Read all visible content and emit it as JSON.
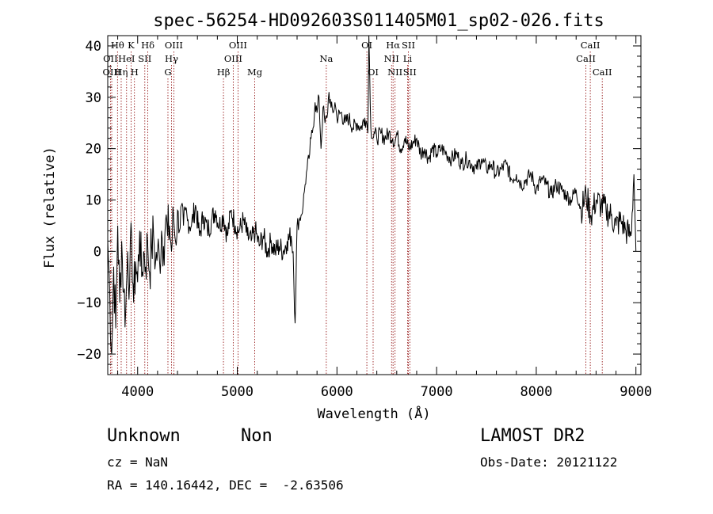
{
  "chart_data": {
    "type": "line",
    "title": "spec-56254-HD092603S011405M01_sp02-026.fits",
    "xlabel": "Wavelength (Å)",
    "ylabel": "Flux (relative)",
    "xlim": [
      3700,
      9050
    ],
    "ylim": [
      -24,
      42
    ],
    "xticks": [
      4000,
      5000,
      6000,
      7000,
      8000,
      9000
    ],
    "yticks": [
      -20,
      -10,
      0,
      10,
      20,
      30,
      40
    ],
    "grid": false,
    "line_color": "#000000",
    "marker_color": "#8b0000",
    "series": [
      {
        "x": [
          3700,
          3720,
          3740,
          3760,
          3780,
          3800,
          3820,
          3840,
          3860,
          3880,
          3900,
          3920,
          3940,
          3960,
          3980,
          4000,
          4020,
          4040,
          4060,
          4080,
          4100,
          4120,
          4140,
          4160,
          4180,
          4200,
          4220,
          4240,
          4260,
          4280,
          4300,
          4320,
          4340,
          4360,
          4380,
          4400,
          4420,
          4440,
          4460,
          4480,
          4500,
          4540,
          4580,
          4620,
          4660,
          4700,
          4740,
          4780,
          4820,
          4860,
          4900,
          4940,
          4980,
          5020,
          5060,
          5100,
          5140,
          5180,
          5220,
          5260,
          5300,
          5340,
          5380,
          5420,
          5460,
          5500,
          5540,
          5560,
          5580,
          5600,
          5620,
          5640,
          5660,
          5680,
          5700,
          5720,
          5740,
          5760,
          5780,
          5800,
          5820,
          5840,
          5860,
          5880,
          5900,
          5920,
          5940,
          5960,
          5980,
          6000,
          6040,
          6080,
          6120,
          6160,
          6200,
          6240,
          6280,
          6300,
          6310,
          6320,
          6340,
          6360,
          6380,
          6400,
          6440,
          6480,
          6520,
          6560,
          6580,
          6600,
          6640,
          6680,
          6720,
          6760,
          6800,
          6840,
          6880,
          6920,
          6960,
          7000,
          7050,
          7100,
          7150,
          7200,
          7250,
          7300,
          7350,
          7400,
          7450,
          7500,
          7550,
          7600,
          7650,
          7700,
          7750,
          7800,
          7850,
          7900,
          7950,
          8000,
          8050,
          8100,
          8150,
          8200,
          8250,
          8300,
          8350,
          8400,
          8450,
          8500,
          8550,
          8600,
          8650,
          8700,
          8750,
          8800,
          8850,
          8900,
          8950,
          8980,
          9000
        ],
        "y": [
          2,
          -8,
          -20,
          -3,
          -15,
          5,
          -10,
          2,
          -8,
          -12,
          0,
          -6,
          3,
          -10,
          -2,
          -6,
          4,
          -5,
          0,
          -3,
          2,
          -4,
          1,
          3,
          -2,
          0,
          -2,
          4,
          1,
          6,
          3,
          5,
          0,
          7,
          2,
          8,
          4,
          9,
          5,
          8,
          6,
          5,
          9,
          3,
          7,
          4,
          6,
          8,
          5,
          7,
          3,
          8,
          5,
          4,
          6,
          3,
          2,
          4,
          1,
          3,
          0,
          2,
          0,
          1,
          0,
          2,
          3,
          0,
          -14,
          5,
          6,
          7,
          9,
          13,
          16,
          18,
          22,
          24,
          29,
          27,
          30,
          20,
          28,
          25,
          26,
          31,
          28,
          27,
          29,
          26,
          27,
          25,
          26,
          24,
          25,
          24,
          26,
          25,
          23,
          43,
          24,
          22,
          23,
          22,
          23,
          22,
          23,
          22,
          21,
          23,
          20,
          22,
          20,
          21,
          22,
          19,
          20,
          18,
          20,
          19,
          20,
          19,
          18,
          19,
          17,
          18,
          17,
          16,
          18,
          16,
          17,
          15,
          16,
          17,
          14,
          15,
          13,
          14,
          15,
          12,
          14,
          13,
          11,
          13,
          12,
          11,
          10,
          12,
          8,
          11,
          7,
          10,
          9,
          8,
          7,
          5,
          6,
          4,
          3,
          15,
          0
        ]
      }
    ],
    "lines": [
      {
        "label": "OII",
        "x": 3727,
        "row": 2
      },
      {
        "label": "OIII",
        "x": 3740,
        "row": 3
      },
      {
        "label": "Hθ",
        "x": 3798,
        "row": 1
      },
      {
        "label": "Hη",
        "x": 3835,
        "row": 3
      },
      {
        "label": "HeI",
        "x": 3889,
        "row": 2
      },
      {
        "label": "K",
        "x": 3934,
        "row": 1
      },
      {
        "label": "H",
        "x": 3968,
        "row": 3
      },
      {
        "label": "SII",
        "x": 4072,
        "row": 2
      },
      {
        "label": "Hδ",
        "x": 4102,
        "row": 1
      },
      {
        "label": "G",
        "x": 4304,
        "row": 3
      },
      {
        "label": "Hγ",
        "x": 4340,
        "row": 2
      },
      {
        "label": "OIII",
        "x": 4363,
        "row": 1
      },
      {
        "label": "Hβ",
        "x": 4861,
        "row": 3
      },
      {
        "label": "OIII",
        "x": 4959,
        "row": 2
      },
      {
        "label": "OIII",
        "x": 5007,
        "row": 1
      },
      {
        "label": "Mg",
        "x": 5175,
        "row": 3
      },
      {
        "label": "Na",
        "x": 5893,
        "row": 2
      },
      {
        "label": "OI",
        "x": 6300,
        "row": 1
      },
      {
        "label": "OI",
        "x": 6363,
        "row": 3
      },
      {
        "label": "NII",
        "x": 6548,
        "row": 2
      },
      {
        "label": "Hα",
        "x": 6563,
        "row": 1
      },
      {
        "label": "NII",
        "x": 6583,
        "row": 3
      },
      {
        "label": "Li",
        "x": 6708,
        "row": 2
      },
      {
        "label": "SII",
        "x": 6717,
        "row": 1
      },
      {
        "label": "SII",
        "x": 6731,
        "row": 3
      },
      {
        "label": "CaII",
        "x": 8498,
        "row": 2
      },
      {
        "label": "CaII",
        "x": 8542,
        "row": 1
      },
      {
        "label": "CaII",
        "x": 8662,
        "row": 3
      }
    ]
  },
  "info": {
    "class": "Unknown",
    "subclass": "Non",
    "cz": "cz = NaN",
    "radec": "RA = 140.16442, DEC =  -2.63506",
    "survey": "LAMOST DR2",
    "obsdate": "Obs-Date: 20121122"
  }
}
